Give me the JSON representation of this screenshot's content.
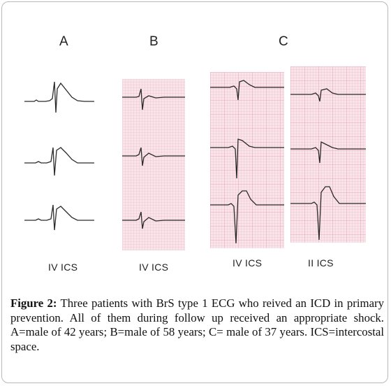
{
  "figure": {
    "panels": [
      {
        "label": "A",
        "ics_labels": [
          "IV ICS"
        ]
      },
      {
        "label": "B",
        "ics_labels": [
          "IV ICS"
        ]
      },
      {
        "label": "C",
        "ics_labels": [
          "IV ICS",
          "II ICS"
        ]
      }
    ],
    "caption": {
      "lead": "Figure 2:",
      "text": " Three patients with BrS type 1 ECG who reived an ICD in primary prevention. All of them during follow up received an appropriate shock. A=male of 42 years; B=male of 58 years; C= male of 37 years. ICS=intercostal space."
    },
    "colors": {
      "grid_fill": "#f9e4ea",
      "grid_line": "#eab0bf",
      "trace": "#2a2a2a",
      "frame": "#b9b9b9"
    }
  }
}
